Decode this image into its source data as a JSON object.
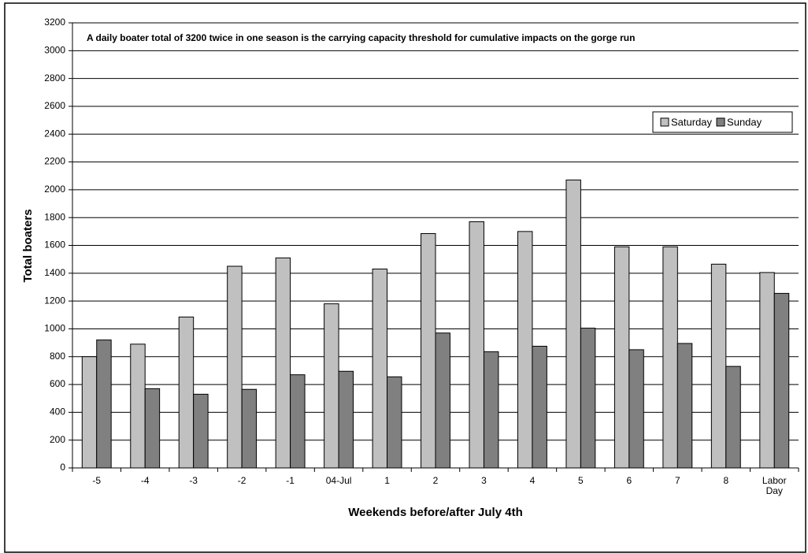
{
  "chart_data": {
    "type": "bar",
    "annotation": "A daily boater total of 3200 twice in one season is the carrying capacity threshold for cumulative impacts on the gorge run",
    "xlabel": "Weekends before/after July 4th",
    "ylabel": "Total boaters",
    "categories": [
      "-5",
      "-4",
      "-3",
      "-2",
      "-1",
      "04-Jul",
      "1",
      "2",
      "3",
      "4",
      "5",
      "6",
      "7",
      "8",
      "Labor Day"
    ],
    "series": [
      {
        "name": "Saturday",
        "color": "#c0c0c0",
        "values": [
          800,
          890,
          1085,
          1450,
          1510,
          1180,
          1430,
          1685,
          1770,
          1700,
          2070,
          1590,
          1590,
          1465,
          1405
        ]
      },
      {
        "name": "Sunday",
        "color": "#808080",
        "values": [
          920,
          570,
          530,
          565,
          670,
          695,
          655,
          970,
          835,
          875,
          1005,
          850,
          895,
          730,
          1255
        ]
      }
    ],
    "ylim": [
      0,
      3200
    ],
    "yticks": [
      0,
      200,
      400,
      600,
      800,
      1000,
      1200,
      1400,
      1600,
      1800,
      2000,
      2200,
      2400,
      2600,
      2800,
      3000,
      3200
    ],
    "grid": true,
    "legend": "upper right"
  }
}
